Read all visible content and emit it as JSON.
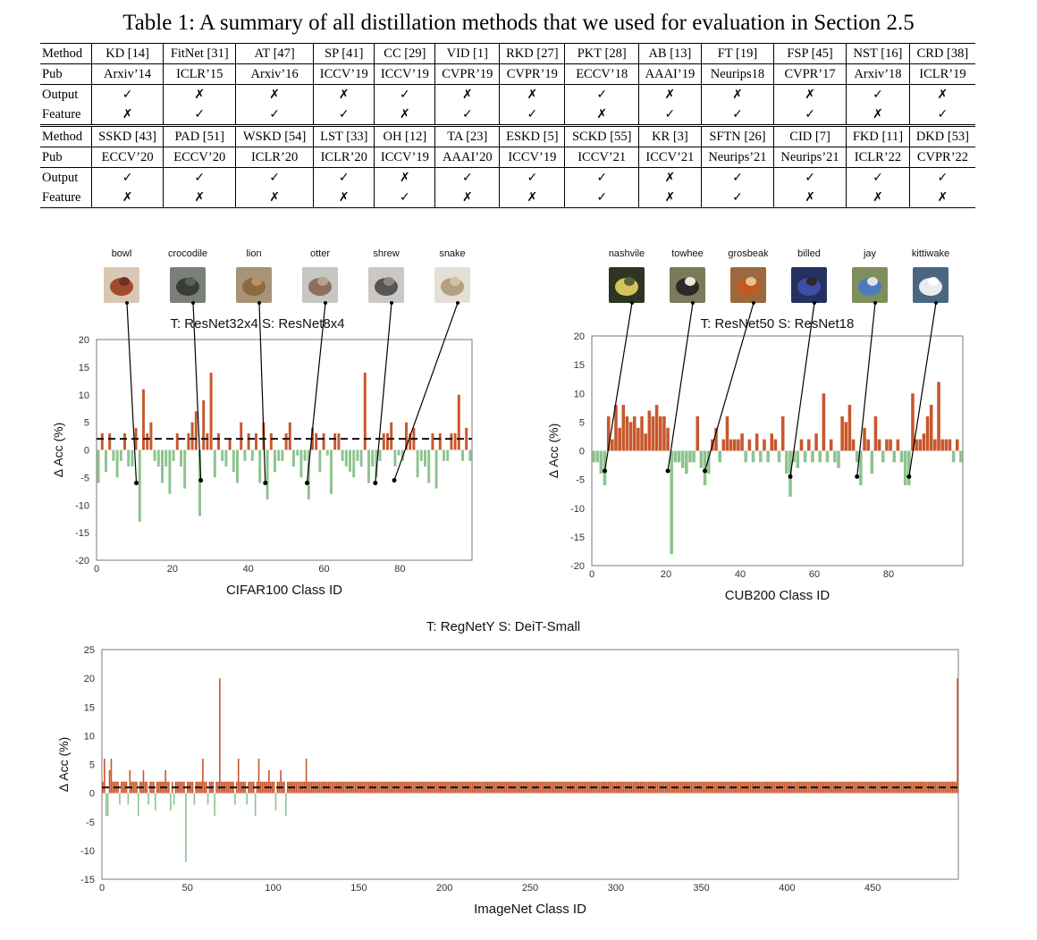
{
  "caption": "Table 1: A summary of all distillation methods that we used for evaluation in Section 2.5",
  "table": {
    "row_labels": [
      "Method",
      "Pub",
      "Output",
      "Feature"
    ],
    "blocks": [
      {
        "methods": [
          "KD [14]",
          "FitNet [31]",
          "AT [47]",
          "SP [41]",
          "CC [29]",
          "VID [1]",
          "RKD [27]",
          "PKT [28]",
          "AB [13]",
          "FT [19]",
          "FSP [45]",
          "NST [16]",
          "CRD [38]"
        ],
        "pubs": [
          "Arxiv’14",
          "ICLR’15",
          "Arxiv’16",
          "ICCV’19",
          "ICCV’19",
          "CVPR’19",
          "CVPR’19",
          "ECCV’18",
          "AAAI’19",
          "Neurips18",
          "CVPR’17",
          "Arxiv’18",
          "ICLR’19"
        ],
        "output": [
          "✓",
          "✗",
          "✗",
          "✗",
          "✓",
          "✗",
          "✗",
          "✓",
          "✗",
          "✗",
          "✗",
          "✓",
          "✗"
        ],
        "feature": [
          "✗",
          "✓",
          "✓",
          "✓",
          "✗",
          "✓",
          "✓",
          "✗",
          "✓",
          "✓",
          "✓",
          "✗",
          "✓"
        ]
      },
      {
        "methods": [
          "SSKD [43]",
          "PAD [51]",
          "WSKD [54]",
          "LST [33]",
          "OH [12]",
          "TA [23]",
          "ESKD [5]",
          "SCKD [55]",
          "KR [3]",
          "SFTN [26]",
          "CID [7]",
          "FKD [11]",
          "DKD [53]"
        ],
        "pubs": [
          "ECCV’20",
          "ECCV’20",
          "ICLR’20",
          "ICLR’20",
          "ICCV’19",
          "AAAI’20",
          "ICCV’19",
          "ICCV’21",
          "ICCV’21",
          "Neurips’21",
          "Neurips’21",
          "ICLR’22",
          "CVPR’22"
        ],
        "output": [
          "✓",
          "✓",
          "✓",
          "✓",
          "✗",
          "✓",
          "✓",
          "✓",
          "✗",
          "✓",
          "✓",
          "✓",
          "✓"
        ],
        "feature": [
          "✗",
          "✗",
          "✗",
          "✗",
          "✓",
          "✗",
          "✗",
          "✓",
          "✗",
          "✓",
          "✗",
          "✗",
          "✗"
        ]
      }
    ]
  },
  "colors": {
    "positive": "#c8572d",
    "negative": "#8ec38e",
    "mean_line": "#000000",
    "axis": "#555555"
  },
  "chart_data": [
    {
      "type": "bar",
      "title": "T: ResNet32x4 S: ResNet8x4",
      "xlabel": "CIFAR100 Class ID",
      "ylabel": "Δ Acc (%)",
      "xlim": [
        0,
        99
      ],
      "ylim": [
        -20,
        20
      ],
      "yticks": [
        20,
        15,
        10,
        5,
        0,
        -5,
        -10,
        -15,
        -20
      ],
      "xticks": [
        0,
        20,
        40,
        60,
        80
      ],
      "mean": 2,
      "legend": "none",
      "grid": false,
      "x": [
        0,
        1,
        2,
        3,
        4,
        5,
        6,
        7,
        8,
        9,
        10,
        11,
        12,
        13,
        14,
        15,
        16,
        17,
        18,
        19,
        20,
        21,
        22,
        23,
        24,
        25,
        26,
        27,
        28,
        29,
        30,
        31,
        32,
        33,
        34,
        35,
        36,
        37,
        38,
        39,
        40,
        41,
        42,
        43,
        44,
        45,
        46,
        47,
        48,
        49,
        50,
        51,
        52,
        53,
        54,
        55,
        56,
        57,
        58,
        59,
        60,
        61,
        62,
        63,
        64,
        65,
        66,
        67,
        68,
        69,
        70,
        71,
        72,
        73,
        74,
        75,
        76,
        77,
        78,
        79,
        80,
        81,
        82,
        83,
        84,
        85,
        86,
        87,
        88,
        89,
        90,
        91,
        92,
        93,
        94,
        95,
        96,
        97,
        98,
        99
      ],
      "values": [
        -6,
        3,
        -4,
        3,
        -2,
        -5,
        -2,
        3,
        -3,
        -3,
        4,
        -13,
        11,
        3,
        5,
        -2,
        -3,
        -6,
        -3,
        -8,
        -2,
        3,
        -3,
        -7,
        3,
        5,
        7,
        -12,
        9,
        3,
        14,
        -5,
        3,
        -2,
        -3,
        2,
        -4,
        -6,
        5,
        -2,
        3,
        -2,
        3,
        -6,
        5,
        -9,
        3,
        -4,
        -2,
        -2,
        3,
        5,
        -3,
        -1,
        -5,
        -2,
        -9,
        4,
        3,
        -4,
        3,
        -1,
        -8,
        3,
        3,
        -2,
        -3,
        -4,
        -5,
        -2,
        -3,
        14,
        -6,
        -3,
        -5,
        -2,
        3,
        3,
        5,
        -3,
        -1,
        -2,
        5,
        3,
        4,
        -5,
        -2,
        -3,
        -6,
        3,
        -7,
        3,
        -2,
        -2,
        3,
        3,
        10,
        -2,
        4,
        -2
      ],
      "labels": [
        {
          "name": "bowl",
          "x": 10,
          "y": -6
        },
        {
          "name": "crocodile",
          "x": 27,
          "y": -5.5
        },
        {
          "name": "lion",
          "x": 44,
          "y": -6
        },
        {
          "name": "otter",
          "x": 55,
          "y": -6
        },
        {
          "name": "shrew",
          "x": 73,
          "y": -6
        },
        {
          "name": "snake",
          "x": 78,
          "y": -5.5
        }
      ]
    },
    {
      "type": "bar",
      "title": "T: ResNet50 S: ResNet18",
      "xlabel": "CUB200 Class ID",
      "ylabel": "Δ Acc (%)",
      "xlim": [
        0,
        100
      ],
      "ylim": [
        -20,
        20
      ],
      "yticks": [
        20,
        15,
        10,
        5,
        0,
        -5,
        -10,
        -15,
        -20
      ],
      "xticks": [
        0,
        20,
        40,
        60,
        80
      ],
      "legend": "none",
      "grid": false,
      "x": [
        0,
        1,
        2,
        3,
        4,
        5,
        6,
        7,
        8,
        9,
        10,
        11,
        12,
        13,
        14,
        15,
        16,
        17,
        18,
        19,
        20,
        21,
        22,
        23,
        24,
        25,
        26,
        27,
        28,
        29,
        30,
        31,
        32,
        33,
        34,
        35,
        36,
        37,
        38,
        39,
        40,
        41,
        42,
        43,
        44,
        45,
        46,
        47,
        48,
        49,
        50,
        51,
        52,
        53,
        54,
        55,
        56,
        57,
        58,
        59,
        60,
        61,
        62,
        63,
        64,
        65,
        66,
        67,
        68,
        69,
        70,
        71,
        72,
        73,
        74,
        75,
        76,
        77,
        78,
        79,
        80,
        81,
        82,
        83,
        84,
        85,
        86,
        87,
        88,
        89,
        90,
        91,
        92,
        93,
        94,
        95,
        96,
        97,
        98,
        99
      ],
      "values": [
        -2,
        -2,
        -4,
        -6,
        6,
        2,
        8,
        4,
        8,
        6,
        5,
        6,
        4,
        6,
        3,
        7,
        6,
        8,
        6,
        6,
        4,
        -18,
        -2,
        -2,
        -3,
        -4,
        -2,
        -2,
        6,
        -3,
        -6,
        -4,
        2,
        4,
        -2,
        2,
        6,
        2,
        2,
        2,
        3,
        -2,
        2,
        -2,
        3,
        -2,
        2,
        -2,
        3,
        2,
        -2,
        6,
        -4,
        -8,
        -2,
        -3,
        2,
        -2,
        2,
        -2,
        3,
        -2,
        10,
        -2,
        2,
        -2,
        -3,
        6,
        5,
        8,
        2,
        -2,
        -6,
        4,
        2,
        -4,
        6,
        2,
        -2,
        2,
        2,
        -2,
        2,
        -2,
        -6,
        -6,
        10,
        2,
        2,
        3,
        6,
        8,
        2,
        12,
        2,
        2,
        2,
        -2,
        2,
        -2
      ],
      "labels": [
        {
          "name": "nashvile",
          "x": 3,
          "y": -3.5
        },
        {
          "name": "towhee",
          "x": 20,
          "y": -3.5
        },
        {
          "name": "grosbeak",
          "x": 30,
          "y": -3.5
        },
        {
          "name": "billed",
          "x": 53,
          "y": -4.5
        },
        {
          "name": "jay",
          "x": 71,
          "y": -4.5
        },
        {
          "name": "kittiwake",
          "x": 85,
          "y": -4.5
        }
      ]
    },
    {
      "type": "bar",
      "title": "T: RegNetY S: DeiT-Small",
      "xlabel": "ImageNet Class ID",
      "ylabel": "Δ Acc (%)",
      "xlim": [
        0,
        500
      ],
      "ylim": [
        -15,
        25
      ],
      "yticks": [
        25,
        20,
        15,
        10,
        5,
        0,
        -5,
        -10,
        -15
      ],
      "xticks": [
        0,
        50,
        100,
        150,
        200,
        250,
        300,
        350,
        400,
        450
      ],
      "mean": 1,
      "legend": "none",
      "grid": false,
      "values": [
        2,
        6,
        -4,
        -4,
        4,
        6,
        2,
        2,
        2,
        2,
        -2,
        2,
        2,
        2,
        2,
        -2,
        4,
        2,
        2,
        2,
        2,
        -4,
        2,
        2,
        4,
        2,
        2,
        -2,
        2,
        2,
        2,
        -3,
        2,
        2,
        2,
        2,
        2,
        4,
        2,
        2,
        -3,
        2,
        -2,
        2,
        2,
        2,
        2,
        2,
        2,
        -12,
        2,
        2,
        2,
        2,
        -2,
        2,
        2,
        2,
        2,
        6,
        2,
        2,
        -2,
        2,
        2,
        2,
        -4,
        2,
        2,
        20,
        2,
        2,
        2,
        2,
        2,
        2,
        2,
        2,
        -2,
        2,
        6,
        2,
        2,
        2,
        2,
        -2,
        2,
        2,
        2,
        2,
        -4,
        2,
        6,
        2,
        2,
        2,
        2,
        2,
        4,
        2,
        2,
        2,
        -3,
        2,
        2,
        4,
        2,
        2,
        -4,
        2,
        2,
        2,
        2,
        2,
        2,
        2,
        2,
        2,
        2,
        2,
        6,
        2,
        2,
        2,
        2,
        2,
        2,
        2,
        2,
        2,
        2,
        2,
        2,
        2,
        2,
        2,
        2,
        2,
        2,
        2,
        2,
        2,
        2,
        2,
        2,
        2,
        2,
        2,
        2,
        2,
        2,
        2,
        2,
        2,
        2,
        2,
        2,
        2,
        2,
        2,
        2,
        2,
        2,
        2,
        2,
        2,
        2,
        2,
        2,
        2,
        2,
        2,
        2,
        2,
        2,
        2,
        2,
        2,
        2,
        2,
        2,
        2,
        2,
        2,
        2,
        2,
        2,
        2,
        2,
        2,
        2,
        2,
        2,
        2,
        2,
        2,
        2,
        2,
        2,
        2,
        2,
        2,
        2,
        2,
        2,
        2,
        2,
        2,
        2,
        2,
        2,
        2,
        2,
        2,
        2,
        2,
        2,
        2,
        2,
        2,
        2,
        2,
        2,
        2,
        2,
        2,
        2,
        2,
        2,
        2,
        2,
        2,
        2,
        2,
        2,
        2,
        2,
        2,
        2,
        2,
        2,
        2,
        2,
        2,
        2,
        2,
        2,
        2,
        2,
        2,
        2,
        2,
        2,
        2,
        2,
        2,
        2,
        2,
        2,
        2,
        2,
        2,
        2,
        2,
        2,
        2,
        2,
        2,
        2,
        2,
        2,
        2,
        2,
        2,
        2,
        2,
        2,
        2,
        2,
        2,
        2,
        2,
        2,
        2,
        2,
        2,
        2,
        2,
        2,
        2,
        2,
        2,
        2,
        2,
        2,
        2,
        2,
        2,
        2,
        2,
        2,
        2,
        2,
        2,
        2,
        2,
        2,
        2,
        2,
        2,
        2,
        2,
        2,
        2,
        2,
        2,
        2,
        2,
        2,
        2,
        2,
        2,
        2,
        2,
        2,
        2,
        2,
        2,
        2,
        2,
        2,
        2,
        2,
        2,
        2,
        2,
        2,
        2,
        2,
        2,
        2,
        2,
        2,
        2,
        2,
        2,
        2,
        2,
        2,
        2,
        2,
        2,
        2,
        2,
        2,
        2,
        2,
        2,
        2,
        2,
        2,
        2,
        2,
        2,
        2,
        2,
        2,
        2,
        2,
        2,
        2,
        2,
        2,
        2,
        2,
        2,
        2,
        2,
        2,
        2,
        2,
        2,
        2,
        2,
        2,
        2,
        2,
        2,
        2,
        2,
        2,
        2,
        2,
        2,
        2,
        2,
        2,
        2,
        2,
        2,
        2,
        2,
        2,
        2,
        2,
        2,
        2,
        2,
        2,
        2,
        2,
        2,
        2,
        2,
        2,
        2,
        2,
        2,
        2,
        2,
        2,
        2,
        2,
        2,
        2,
        2,
        2,
        2,
        2,
        2,
        2,
        2,
        2,
        2,
        2,
        2,
        2,
        2,
        2,
        2,
        2,
        2,
        2,
        2,
        2,
        2,
        2,
        2,
        2,
        2,
        2,
        2,
        2,
        2,
        2,
        2,
        2,
        2,
        2,
        2,
        2,
        2,
        2,
        2,
        2,
        2,
        2,
        2,
        2,
        2,
        2,
        2,
        2,
        2,
        2,
        2,
        2,
        2,
        2,
        2,
        2,
        2,
        2,
        2,
        2,
        2,
        2,
        2,
        2,
        2,
        2,
        2,
        2,
        2,
        2,
        2,
        2,
        2,
        2,
        2,
        2,
        2,
        2,
        2,
        20
      ]
    }
  ]
}
